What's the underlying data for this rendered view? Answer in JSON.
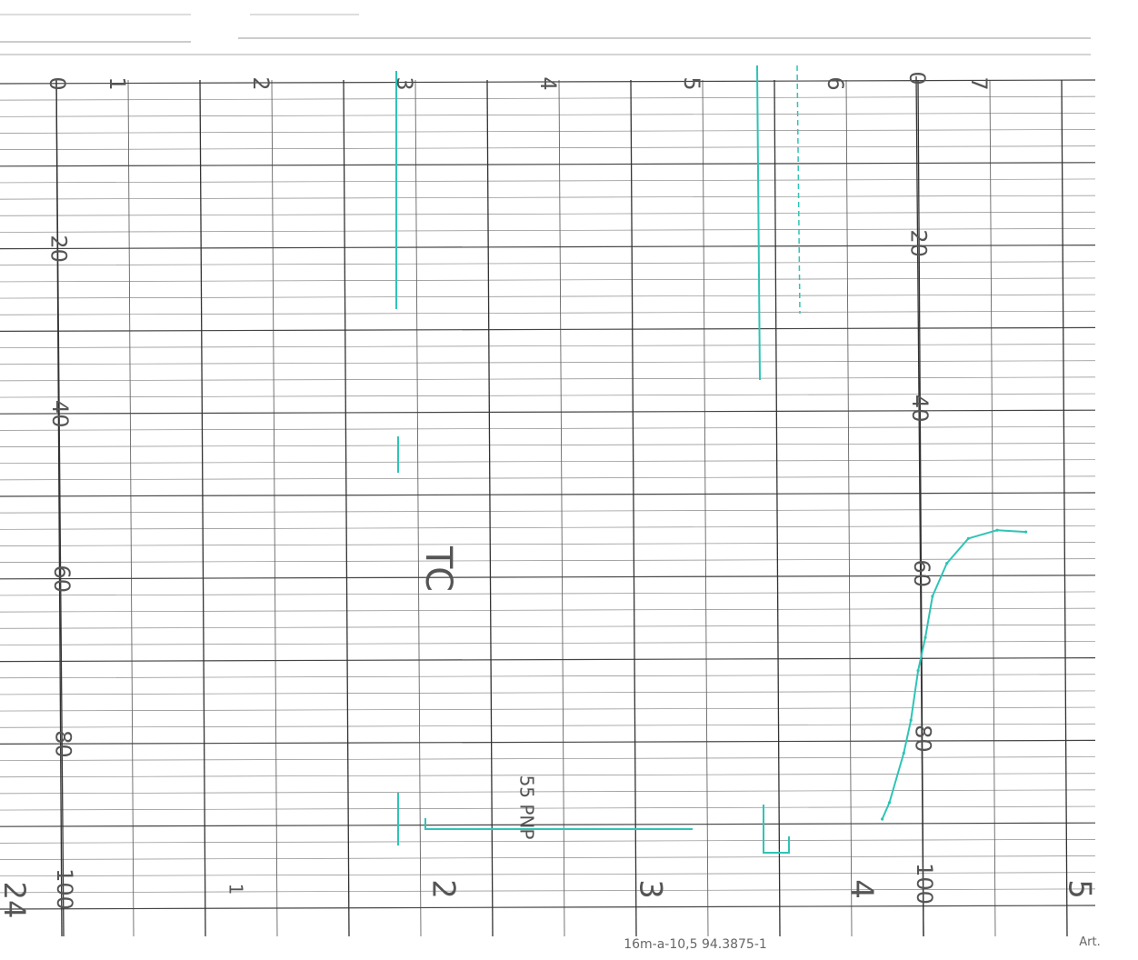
{
  "chart_data": {
    "type": "line",
    "title": "",
    "orientation": "rotated-90",
    "left_scale_ticks": [
      "0",
      "20",
      "40",
      "60",
      "80",
      "100"
    ],
    "right_scale_ticks": [
      "0",
      "20",
      "40",
      "60",
      "80",
      "100"
    ],
    "top_time_ticks": [
      "1",
      "2",
      "3",
      "4",
      "5",
      "6",
      "7"
    ],
    "bottom_time_ticks": [
      "1",
      "2",
      "3",
      "4",
      "5"
    ],
    "trace_color": "#2ec4b6",
    "series": [
      {
        "points": [
          [
            5.7,
            88
          ],
          [
            5.75,
            86
          ],
          [
            5.85,
            80
          ],
          [
            5.9,
            76
          ],
          [
            5.95,
            70
          ],
          [
            6.0,
            66
          ],
          [
            6.05,
            61
          ],
          [
            6.15,
            57
          ],
          [
            6.3,
            54
          ],
          [
            6.5,
            53
          ],
          [
            6.7,
            53.2
          ]
        ]
      }
    ],
    "annotations": {
      "handwritten_label": "TC",
      "product_note": "55 PNP",
      "corner_label": "24",
      "footer_code": "16m-a-10,5  94.3875-1",
      "art_label": "Art."
    }
  }
}
